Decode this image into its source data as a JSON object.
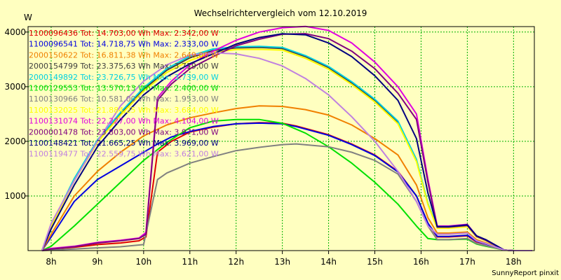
{
  "chart_data": {
    "type": "line",
    "title": "Wechselrichtervergleich vom 12.10.2019",
    "ylabel": "W",
    "xlabel": "",
    "footer": "SunnyReport pinxit",
    "ylim": [
      0,
      4100
    ],
    "xlim": [
      7.5,
      18.45
    ],
    "yticks": [
      1000,
      2000,
      3000,
      4000
    ],
    "xticks": [
      8,
      9,
      10,
      11,
      12,
      13,
      14,
      15,
      16,
      17,
      18
    ],
    "xtick_labels": [
      "8h",
      "9h",
      "10h",
      "11h",
      "12h",
      "13h",
      "14h",
      "15h",
      "16h",
      "17h",
      "18h"
    ],
    "grid": true,
    "legend_position": "top-left",
    "series": [
      {
        "name": "1100096436",
        "label": "1100096436 Tot: 14.703,00 Wh Max: 2.342,00 W",
        "color": "#E00000",
        "x": [
          7.8,
          8.0,
          8.5,
          9.0,
          9.5,
          9.9,
          10.05,
          10.3,
          10.6,
          11.0,
          11.5,
          12.0,
          12.5,
          13.0,
          13.3,
          14.0,
          14.5,
          15.0,
          15.5,
          15.9,
          16.15,
          16.35,
          16.6,
          17.0,
          17.2,
          17.4,
          17.8,
          18.0,
          18.4
        ],
        "y": [
          0,
          30,
          60,
          110,
          140,
          180,
          250,
          1800,
          2000,
          2170,
          2260,
          2320,
          2342,
          2330,
          2280,
          2120,
          1950,
          1750,
          1450,
          1000,
          500,
          250,
          250,
          270,
          160,
          120,
          10,
          0,
          0
        ]
      },
      {
        "name": "1100096541",
        "label": "1100096541 Tot: 14.718,75 Wh Max: 2.333,00 W",
        "color": "#0000E0",
        "x": [
          7.8,
          8.0,
          8.5,
          9.0,
          9.5,
          10.0,
          10.3,
          10.6,
          11.0,
          11.5,
          12.0,
          12.5,
          13.0,
          13.3,
          14.0,
          14.5,
          15.0,
          15.5,
          15.9,
          16.15,
          16.35,
          16.6,
          17.0,
          17.2,
          17.4,
          17.8,
          18.0,
          18.4
        ],
        "y": [
          0,
          250,
          900,
          1300,
          1550,
          1800,
          1950,
          2080,
          2180,
          2270,
          2320,
          2333,
          2320,
          2270,
          2110,
          1940,
          1740,
          1440,
          1000,
          500,
          260,
          260,
          280,
          170,
          120,
          10,
          0,
          0
        ]
      },
      {
        "name": "2000150622",
        "label": "2000150622 Tot: 16.811,38 Wh Max: 2.649,00 W",
        "color": "#F08000",
        "x": [
          7.8,
          8.0,
          8.5,
          9.0,
          9.5,
          10.0,
          10.5,
          11.0,
          11.5,
          12.0,
          12.5,
          13.0,
          13.5,
          14.0,
          14.5,
          15.0,
          15.5,
          15.9,
          16.15,
          16.35,
          16.6,
          17.0,
          17.2,
          17.4,
          17.8,
          18.0,
          18.4
        ],
        "y": [
          0,
          300,
          1000,
          1450,
          1800,
          2100,
          2300,
          2430,
          2520,
          2600,
          2649,
          2640,
          2580,
          2480,
          2300,
          2050,
          1750,
          1200,
          600,
          320,
          320,
          340,
          200,
          140,
          10,
          0,
          0
        ]
      },
      {
        "name": "2000154799",
        "label": "2000154799 Tot: 23.375,63 Wh Max: 3.719,00 W",
        "color": "#404040",
        "x": [
          7.8,
          8.0,
          8.5,
          9.0,
          9.5,
          10.0,
          10.5,
          11.0,
          11.5,
          12.0,
          12.5,
          13.0,
          13.5,
          14.0,
          14.5,
          15.0,
          15.5,
          15.9,
          16.15,
          16.35,
          16.6,
          17.0,
          17.2,
          17.4,
          17.8,
          18.0,
          18.4
        ],
        "y": [
          0,
          450,
          1300,
          2000,
          2500,
          2950,
          3300,
          3530,
          3660,
          3710,
          3719,
          3700,
          3550,
          3350,
          3070,
          2750,
          2350,
          1650,
          850,
          420,
          420,
          450,
          250,
          180,
          10,
          0,
          0
        ]
      },
      {
        "name": "2000149892",
        "label": "2000149892 Tot: 23.726,75 Wh Max: 3.739,00 W",
        "color": "#00D0E0",
        "x": [
          7.8,
          8.0,
          8.5,
          9.0,
          9.5,
          10.0,
          10.5,
          11.0,
          11.5,
          12.0,
          12.5,
          13.0,
          13.5,
          14.0,
          14.5,
          15.0,
          15.5,
          15.9,
          16.15,
          16.35,
          16.6,
          17.0,
          17.2,
          17.4,
          17.8,
          18.0,
          18.4
        ],
        "y": [
          0,
          460,
          1320,
          2020,
          2530,
          2980,
          3330,
          3560,
          3690,
          3730,
          3739,
          3720,
          3570,
          3370,
          3090,
          2770,
          2370,
          1670,
          860,
          430,
          430,
          460,
          260,
          190,
          10,
          0,
          0
        ]
      },
      {
        "name": "1100129553",
        "label": "1100129553 Tot: 13.570,13 Wh Max: 2.400,00 W",
        "color": "#00E000",
        "x": [
          7.8,
          8.0,
          8.5,
          9.0,
          9.5,
          10.0,
          10.5,
          11.0,
          11.5,
          12.0,
          12.5,
          13.0,
          13.5,
          14.0,
          14.5,
          15.0,
          15.5,
          15.9,
          16.15,
          16.35,
          16.6,
          17.0,
          17.2,
          17.4,
          17.8,
          18.0,
          18.4
        ],
        "y": [
          0,
          80,
          450,
          850,
          1250,
          1650,
          1980,
          2250,
          2370,
          2400,
          2400,
          2330,
          2150,
          1900,
          1600,
          1250,
          850,
          450,
          220,
          200,
          200,
          210,
          120,
          80,
          10,
          0,
          0
        ]
      },
      {
        "name": "1100130966",
        "label": "1100130966 Tot: 10.581,00 Wh Max: 1.953,00 W",
        "color": "#808080",
        "x": [
          7.8,
          8.0,
          8.5,
          9.0,
          9.5,
          10.0,
          10.3,
          10.5,
          11.0,
          11.5,
          12.0,
          12.5,
          13.0,
          13.3,
          14.0,
          14.5,
          15.0,
          15.5,
          15.9,
          16.15,
          16.35,
          16.6,
          17.0,
          17.2,
          17.4,
          17.8,
          18.0,
          18.4
        ],
        "y": [
          0,
          10,
          30,
          50,
          70,
          110,
          1300,
          1420,
          1600,
          1720,
          1830,
          1890,
          1940,
          1953,
          1900,
          1800,
          1650,
          1400,
          900,
          450,
          200,
          200,
          220,
          130,
          90,
          10,
          0,
          0
        ]
      },
      {
        "name": "1100132025",
        "label": "1100132025 Tot: 21.884,25 Wh Max: 3.684,00 W",
        "color": "#FFFF00",
        "x": [
          7.8,
          8.0,
          8.5,
          9.0,
          9.5,
          10.0,
          10.5,
          11.0,
          11.5,
          12.0,
          12.5,
          13.0,
          13.5,
          14.0,
          14.5,
          15.0,
          15.5,
          15.9,
          16.15,
          16.35,
          16.6,
          17.0,
          17.2,
          17.4,
          17.8,
          18.0,
          18.4
        ],
        "y": [
          0,
          440,
          1280,
          1980,
          2480,
          2920,
          3260,
          3480,
          3630,
          3680,
          3684,
          3670,
          3520,
          3320,
          3040,
          2720,
          2320,
          1630,
          840,
          410,
          410,
          440,
          250,
          180,
          10,
          0,
          0
        ]
      },
      {
        "name": "1100131074",
        "label": "1100131074 Tot: 22.227,00 Wh Max: 4.104,00 W",
        "color": "#E000E0",
        "x": [
          7.8,
          8.0,
          8.5,
          9.0,
          9.5,
          9.9,
          10.05,
          10.3,
          10.6,
          11.0,
          11.5,
          12.0,
          12.5,
          13.0,
          13.5,
          14.0,
          14.5,
          15.0,
          15.5,
          15.9,
          16.15,
          16.35,
          16.6,
          17.0,
          17.2,
          17.4,
          17.8,
          18.0,
          18.4
        ],
        "y": [
          0,
          40,
          80,
          150,
          190,
          230,
          330,
          2800,
          3100,
          3400,
          3650,
          3850,
          4000,
          4080,
          4104,
          4030,
          3800,
          3450,
          3000,
          2500,
          1300,
          450,
          450,
          480,
          270,
          200,
          10,
          0,
          0
        ]
      },
      {
        "name": "2000001478",
        "label": "2000001478 Tot: 23.803,00 Wh Max: 3.971,00 W",
        "color": "#800080",
        "x": [
          7.8,
          8.0,
          8.5,
          9.0,
          9.5,
          9.9,
          10.05,
          10.3,
          10.6,
          11.0,
          11.5,
          12.0,
          12.5,
          13.0,
          13.5,
          14.0,
          14.5,
          15.0,
          15.5,
          15.9,
          16.15,
          16.35,
          16.6,
          17.0,
          17.2,
          17.4,
          17.8,
          18.0,
          18.4
        ],
        "y": [
          0,
          30,
          70,
          140,
          180,
          220,
          300,
          2750,
          3050,
          3330,
          3550,
          3750,
          3870,
          3960,
          3971,
          3880,
          3650,
          3330,
          2880,
          2400,
          1250,
          430,
          430,
          460,
          260,
          190,
          10,
          0,
          0
        ]
      },
      {
        "name": "1100148421",
        "label": "1100148421 Tot: 21.665,25 Wh Max: 3.969,00 W",
        "color": "#000080",
        "x": [
          7.8,
          8.0,
          8.5,
          9.0,
          9.5,
          10.0,
          10.5,
          11.0,
          11.5,
          12.0,
          12.5,
          13.0,
          13.5,
          14.0,
          14.5,
          15.0,
          15.5,
          15.9,
          16.15,
          16.35,
          16.6,
          17.0,
          17.2,
          17.4,
          17.8,
          18.0,
          18.4
        ],
        "y": [
          0,
          400,
          1200,
          1900,
          2400,
          2850,
          3180,
          3420,
          3600,
          3780,
          3900,
          3969,
          3950,
          3800,
          3550,
          3200,
          2750,
          2050,
          1050,
          440,
          440,
          470,
          270,
          200,
          10,
          0,
          0
        ]
      },
      {
        "name": "1100119477",
        "label": "1100119477 Tot: 22.559,75 Wh Max: 3.621,00 W",
        "color": "#C080E0",
        "x": [
          7.8,
          8.0,
          8.5,
          9.0,
          9.5,
          10.0,
          10.5,
          11.0,
          11.5,
          12.0,
          12.5,
          13.0,
          13.5,
          14.0,
          14.5,
          15.0,
          15.5,
          15.9,
          16.15,
          16.35,
          16.6,
          17.0,
          17.2,
          17.4,
          17.8,
          18.0,
          18.4
        ],
        "y": [
          0,
          500,
          1280,
          2000,
          2650,
          3100,
          3400,
          3580,
          3621,
          3600,
          3520,
          3380,
          3150,
          2850,
          2450,
          2000,
          1450,
          900,
          450,
          300,
          300,
          320,
          180,
          130,
          10,
          0,
          0
        ]
      }
    ]
  }
}
